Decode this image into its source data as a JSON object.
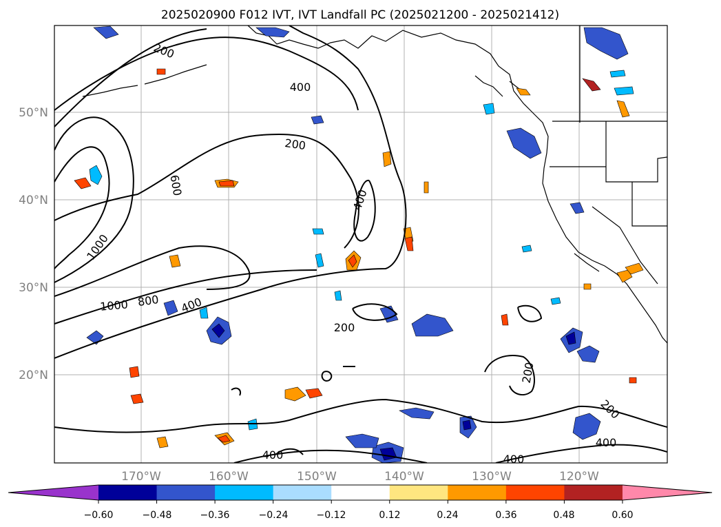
{
  "title": "2025020900 F012 IVT, IVT Landfall PC (2025021200 - 2025021412)",
  "lat_labels": [
    "50°N",
    "40°N",
    "30°N",
    "20°N"
  ],
  "lon_labels": [
    "170°W",
    "160°W",
    "150°W",
    "140°W",
    "130°W",
    "120°W"
  ],
  "contour_labels": [
    "200",
    "400",
    "200",
    "600",
    "400",
    "1000",
    "1000",
    "800",
    "400",
    "200",
    "200",
    "200",
    "400",
    "400",
    "400"
  ],
  "colorbar": {
    "ticks": [
      "−0.60",
      "−0.48",
      "−0.36",
      "−0.24",
      "−0.12",
      "0.12",
      "0.24",
      "0.36",
      "0.48",
      "0.60"
    ],
    "colors": [
      "#9933cc",
      "#000099",
      "#3355cc",
      "#00bbff",
      "#aaddff",
      "#ffffff",
      "#ffe680",
      "#ff9900",
      "#ff4400",
      "#b22222",
      "#ff88aa"
    ]
  }
}
